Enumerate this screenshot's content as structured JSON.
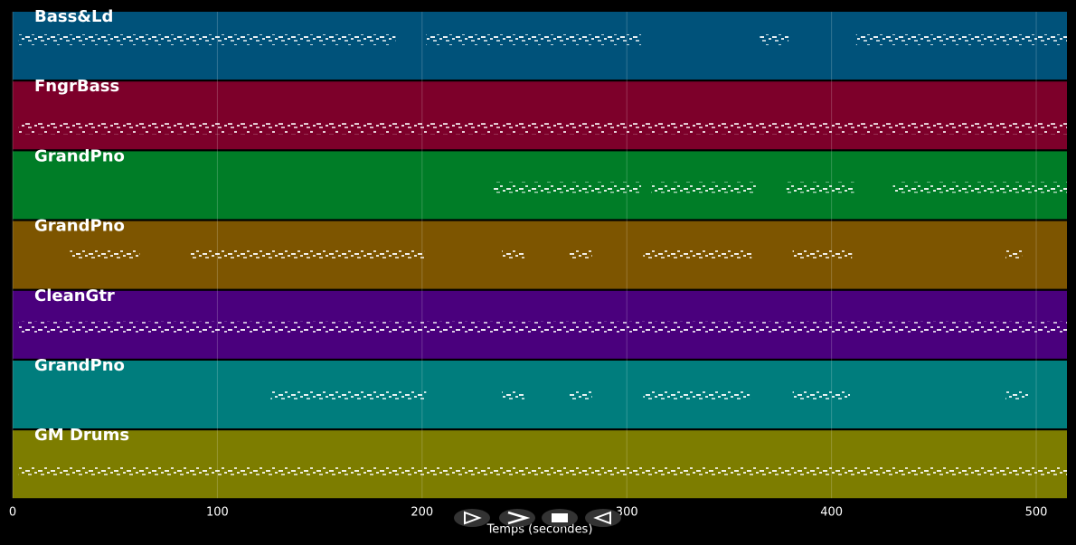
{
  "chart_data": {
    "type": "piano-roll",
    "x_label": "Temps (secondes)",
    "xlim": [
      0,
      515
    ],
    "xticks": [
      0,
      100,
      200,
      300,
      400,
      500
    ],
    "grid": true,
    "tracks": [
      {
        "name": "Bass&Ld",
        "color": "#00527a",
        "segments": [
          [
            3,
            187
          ],
          [
            202,
            307
          ],
          [
            365,
            379
          ],
          [
            412,
            515
          ]
        ]
      },
      {
        "name": "FngrBass",
        "color": "#7d002a",
        "segments": [
          [
            3,
            515
          ]
        ]
      },
      {
        "name": "GrandPno",
        "color": "#007d27",
        "segments": [
          [
            235,
            307
          ],
          [
            312,
            363
          ],
          [
            378,
            411
          ],
          [
            430,
            515
          ]
        ]
      },
      {
        "name": "GrandPno",
        "color": "#7d5500",
        "segments": [
          [
            28,
            62
          ],
          [
            87,
            201
          ],
          [
            239,
            250
          ],
          [
            272,
            283
          ],
          [
            308,
            361
          ],
          [
            381,
            410
          ],
          [
            485,
            493
          ]
        ]
      },
      {
        "name": "CleanGtr",
        "color": "#4a007d",
        "segments": [
          [
            3,
            515
          ]
        ]
      },
      {
        "name": "GrandPno",
        "color": "#007d7d",
        "segments": [
          [
            126,
            202
          ],
          [
            239,
            250
          ],
          [
            272,
            283
          ],
          [
            308,
            360
          ],
          [
            381,
            409
          ],
          [
            485,
            496
          ]
        ]
      },
      {
        "name": "GM Drums",
        "color": "#7d7d00",
        "segments": [
          [
            3,
            515
          ]
        ]
      }
    ]
  }
}
